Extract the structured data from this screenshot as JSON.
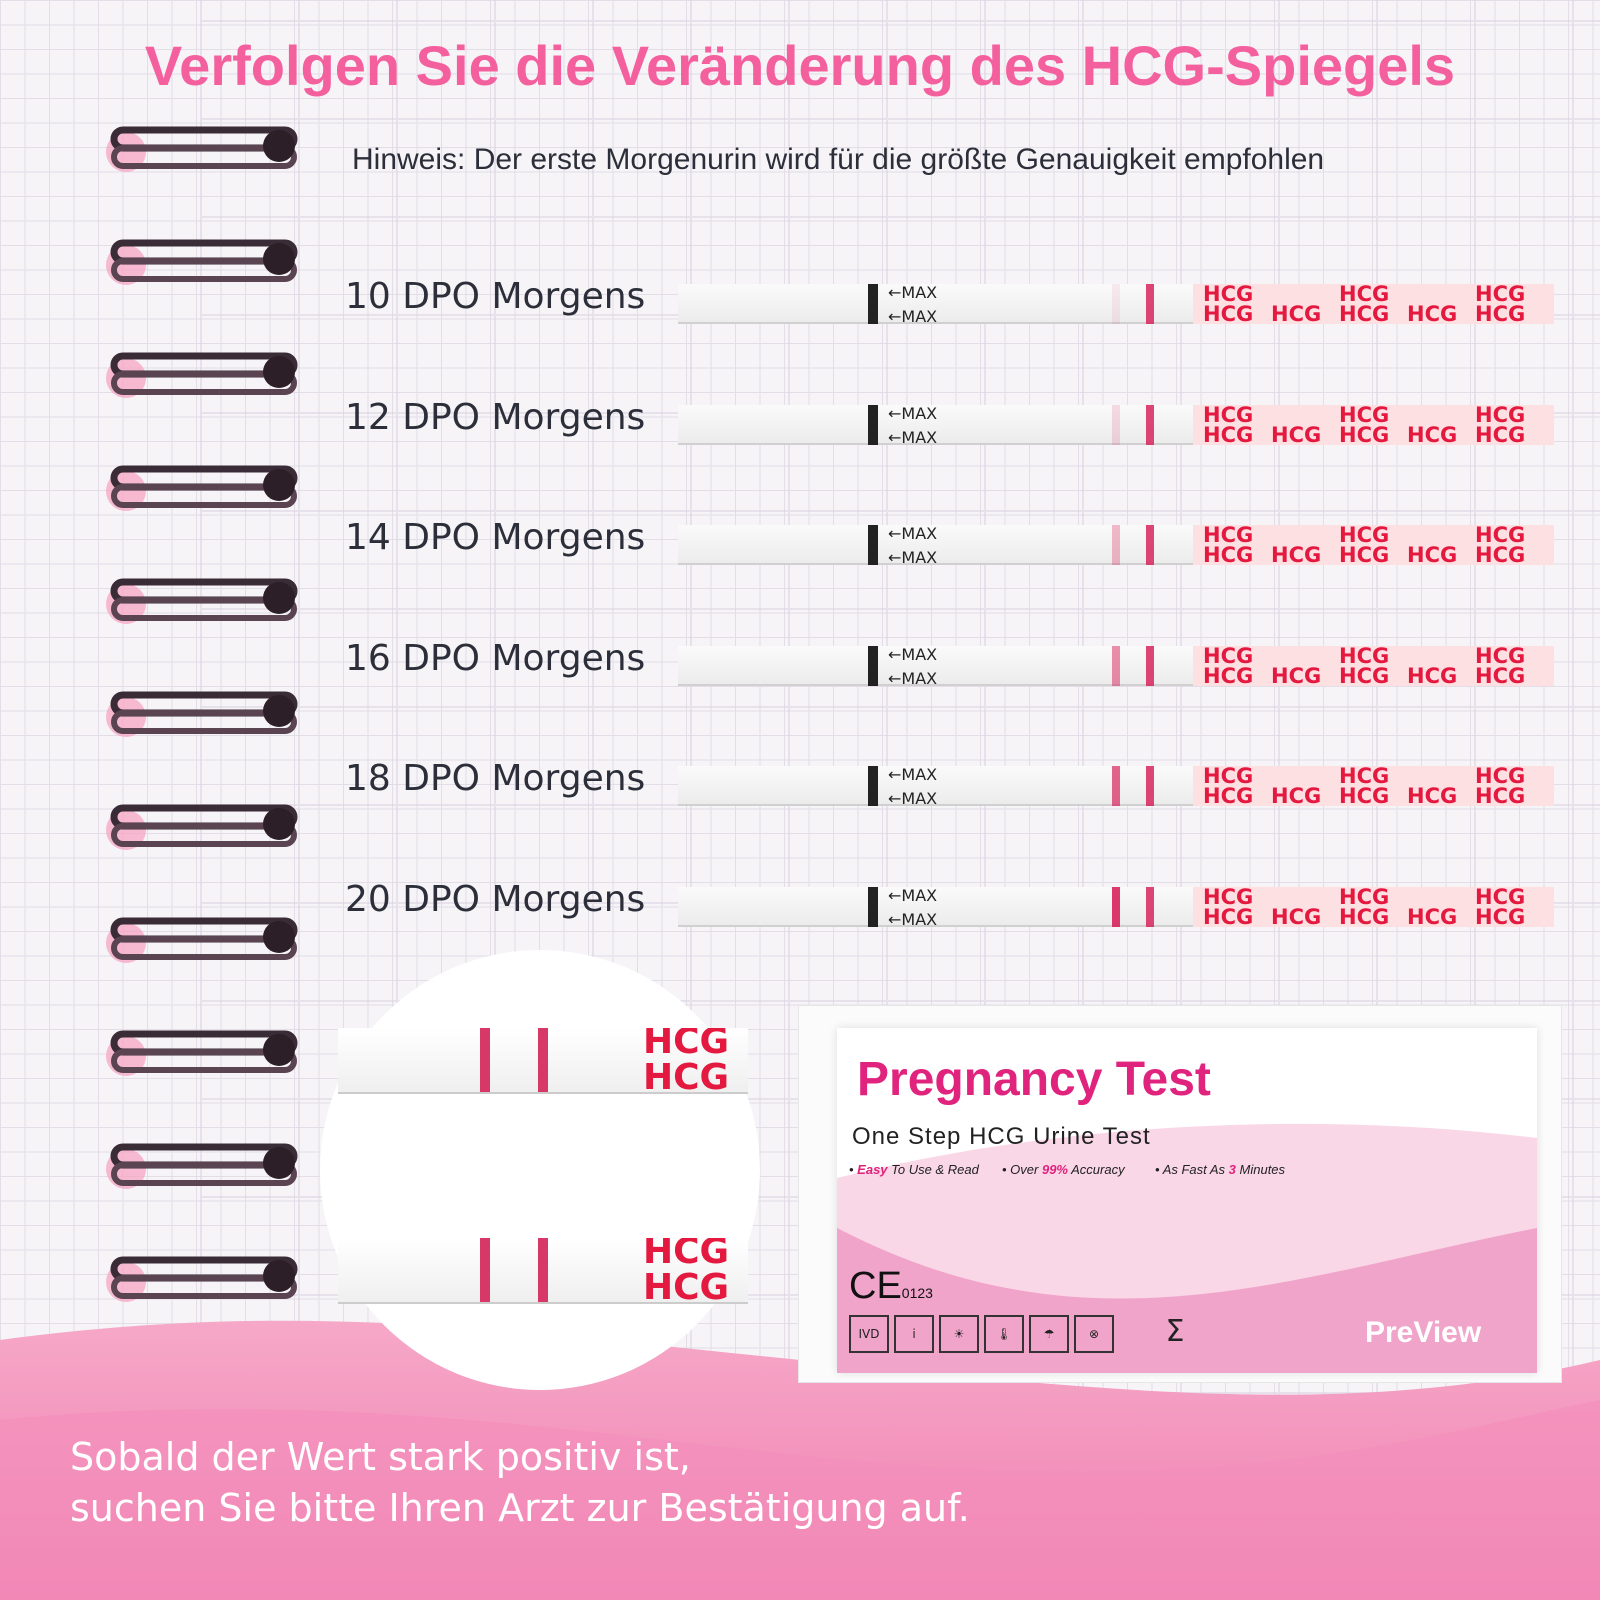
{
  "title": "Verfolgen Sie die Veränderung des HCG-Spiegels",
  "hint": "Hinweis: Der erste Morgenurin wird für die größte Genauigkeit empfohlen",
  "rows": [
    {
      "label": "10 DPO Morgens",
      "test_line_intensity": 0.08
    },
    {
      "label": "12 DPO Morgens",
      "test_line_intensity": 0.15
    },
    {
      "label": "14 DPO Morgens",
      "test_line_intensity": 0.3
    },
    {
      "label": "16 DPO Morgens",
      "test_line_intensity": 0.5
    },
    {
      "label": "18 DPO Morgens",
      "test_line_intensity": 0.7
    },
    {
      "label": "20 DPO Morgens",
      "test_line_intensity": 0.9
    }
  ],
  "strip": {
    "max_label": "←MAX",
    "hcg_text": "HCG"
  },
  "package": {
    "title": "Pregnancy Test",
    "subtitle": "One Step HCG Urine Test",
    "features": [
      {
        "em": "Easy",
        "text": " To Use & Read",
        "prefix": ""
      },
      {
        "prefix": "Over ",
        "em": "99%",
        "text": " Accuracy"
      },
      {
        "prefix": "As Fast As ",
        "em": "3",
        "text": " Minutes"
      }
    ],
    "ce": "CE",
    "ce_number": "0123",
    "symbols": [
      "IVD",
      "i",
      "☀",
      "🌡",
      "☂",
      "⊗"
    ],
    "sigma": "Σ",
    "brand": "PreView",
    "accent": "#e0237d"
  },
  "footer": {
    "line1": "Sobald der Wert stark positiv ist,",
    "line2": "suchen Sie bitte Ihren Arzt zur Bestätigung auf."
  },
  "colors": {
    "title": "#f4609e",
    "hcg": "#e3193f",
    "line": "#d7245c"
  }
}
